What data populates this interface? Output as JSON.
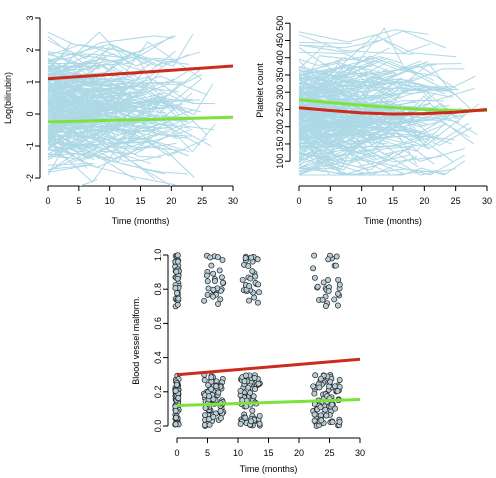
{
  "chart_data": [
    {
      "type": "line",
      "panel": "top-left",
      "xlabel": "Time (months)",
      "ylabel": "Log(bilirubin)",
      "xlim": [
        0,
        30
      ],
      "ylim": [
        -2,
        3
      ],
      "xticks": [
        0,
        5,
        10,
        15,
        20,
        25,
        30
      ],
      "yticks": [
        -2,
        -1,
        0,
        1,
        2,
        3
      ],
      "grid": false,
      "colors": {
        "trajectories": "#add8e6",
        "red": "#cc2b1d",
        "green": "#7be33b"
      },
      "trajectory_band": {
        "x_max": 28.5,
        "y_min": -2.3,
        "y_max": 3.5
      },
      "series": [
        {
          "color": "red",
          "x": [
            0,
            30
          ],
          "y": [
            1.1,
            1.5
          ]
        },
        {
          "color": "green",
          "x": [
            0,
            30
          ],
          "y": [
            -0.25,
            -0.1
          ]
        }
      ]
    },
    {
      "type": "line",
      "panel": "top-right",
      "xlabel": "Time (months)",
      "ylabel": "Platelet count",
      "xlim": [
        0,
        30
      ],
      "ylim": [
        60,
        550
      ],
      "xticks": [
        0,
        5,
        10,
        15,
        20,
        25,
        30
      ],
      "yticks": [
        100,
        150,
        200,
        250,
        300,
        350,
        400,
        450,
        500
      ],
      "grid": false,
      "colors": {
        "trajectories": "#add8e6",
        "red": "#cc2b1d",
        "green": "#7be33b"
      },
      "trajectory_band": {
        "x_max": 30,
        "y_min": 60,
        "y_max": 560
      },
      "series": [
        {
          "color": "green",
          "x": [
            0,
            5,
            10,
            15,
            20,
            25,
            30
          ],
          "y": [
            278,
            270,
            262,
            255,
            250,
            247,
            247
          ]
        },
        {
          "color": "red",
          "x": [
            0,
            5,
            10,
            15,
            20,
            25,
            30
          ],
          "y": [
            255,
            247,
            240,
            237,
            238,
            242,
            250
          ]
        }
      ]
    },
    {
      "type": "scatter",
      "panel": "bottom",
      "xlabel": "Time (months)",
      "ylabel": "Blood vessel malform.",
      "xlim": [
        0,
        30
      ],
      "ylim": [
        0,
        1
      ],
      "xticks": [
        0,
        5,
        10,
        15,
        20,
        25,
        30
      ],
      "yticks": [
        0.0,
        0.2,
        0.4,
        0.6,
        0.8,
        1.0
      ],
      "ytick_labels": [
        "0.0",
        "0.2",
        "0.4",
        "0.6",
        "0.8",
        "1.0"
      ],
      "grid": false,
      "colors": {
        "point_fill": "#b7cfd8",
        "point_edge": "#222222",
        "red": "#cc2b1d",
        "green": "#7be33b"
      },
      "point_clusters": [
        {
          "x_center": 0,
          "x_spread": 0.3,
          "upper_count": 40,
          "lower_count": 70
        },
        {
          "x_center": 6,
          "x_spread": 1.6,
          "upper_count": 30,
          "lower_count": 80
        },
        {
          "x_center": 12,
          "x_spread": 1.6,
          "upper_count": 30,
          "lower_count": 80
        },
        {
          "x_center": 24.5,
          "x_spread": 2.2,
          "upper_count": 30,
          "lower_count": 90
        }
      ],
      "series": [
        {
          "color": "red",
          "x": [
            0,
            30
          ],
          "y": [
            0.3,
            0.39
          ]
        },
        {
          "color": "green",
          "x": [
            0,
            30
          ],
          "y": [
            0.12,
            0.155
          ]
        }
      ]
    }
  ]
}
